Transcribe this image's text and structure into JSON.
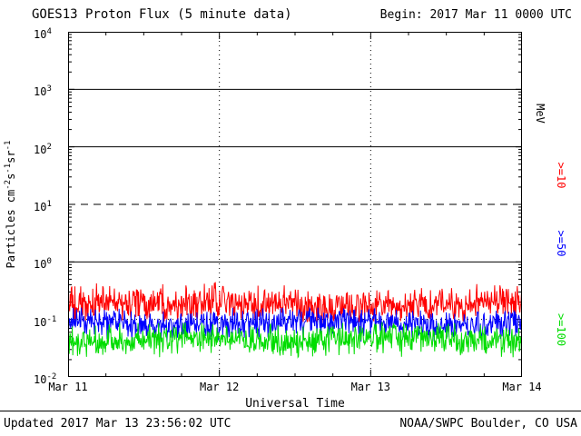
{
  "chart": {
    "title": "GOES13 Proton Flux (5 minute data)",
    "begin": "Begin: 2017 Mar 11 0000 UTC",
    "xlabel": "Universal Time",
    "ylabel_segments": [
      {
        "text": "Particles cm"
      },
      {
        "text": "-2",
        "sup": true
      },
      {
        "text": "s"
      },
      {
        "text": "-1",
        "sup": true
      },
      {
        "text": "sr"
      },
      {
        "text": "-1",
        "sup": true
      }
    ],
    "updated": "Updated 2017 Mar 13 23:56:02 UTC",
    "credit": "NOAA/SWPC Boulder, CO USA",
    "colors": {
      "background": "#ffffff",
      "axis": "#000000"
    }
  },
  "chart_data": {
    "type": "line",
    "title": "GOES13 Proton Flux (5 minute data)",
    "x_axis": {
      "label": "Universal Time",
      "ticks": [
        "Mar 11",
        "Mar 12",
        "Mar 13",
        "Mar 14"
      ],
      "range_days": 3,
      "minor_tick_hours": 6
    },
    "y_axis": {
      "scale": "log10",
      "lim_log10": [
        -2,
        4
      ],
      "tick_labels": [
        {
          "base": "10",
          "exp": "4"
        },
        {
          "base": "10",
          "exp": "3"
        },
        {
          "base": "10",
          "exp": "2"
        },
        {
          "base": "10",
          "exp": "1"
        },
        {
          "base": "10",
          "exp": "0"
        },
        {
          "base": "10",
          "exp": "-1"
        },
        {
          "base": "10",
          "exp": "-2"
        }
      ]
    },
    "grid": {
      "solid_lines_log10": [
        3,
        2,
        0
      ],
      "dashed_line_log10": 1,
      "dotted_line_log10": -1,
      "vertical_dotted_days": [
        1,
        2
      ]
    },
    "right_axis_unit": "MeV",
    "legend_position": "right",
    "series": [
      {
        "name": "ge10",
        "label": ">=10",
        "color": "#ff0000",
        "mean_flux": 0.18,
        "min_flux": 0.09,
        "max_flux": 0.45
      },
      {
        "name": "ge50",
        "label": ">=50",
        "color": "#0000ff",
        "mean_flux": 0.085,
        "min_flux": 0.04,
        "max_flux": 0.16
      },
      {
        "name": "ge100",
        "label": ">=100",
        "color": "#00dd00",
        "mean_flux": 0.045,
        "min_flux": 0.022,
        "max_flux": 0.09
      }
    ],
    "points_per_series": 864,
    "description": "Noisy quiet-time proton flux bands; no events above the 10 pfu dashed threshold"
  }
}
